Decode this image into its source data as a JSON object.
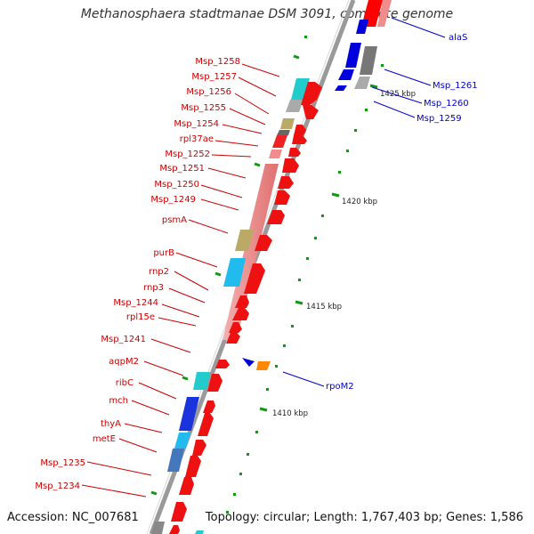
{
  "title": "Methanosphaera stadtmanae DSM 3091, complete genome",
  "footer": {
    "accession": "Accession: NC_007681",
    "summary": "Topology: circular; Length: 1,767,403 bp; Genes: 1,586"
  },
  "ticks": [
    {
      "label": "1425 kbp"
    },
    {
      "label": "1420 kbp"
    },
    {
      "label": "1415 kbp"
    },
    {
      "label": "1410 kbp"
    }
  ],
  "left_labels": [
    "Msp_1258",
    "Msp_1257",
    "Msp_1256",
    "Msp_1255",
    "Msp_1254",
    "rpl37ae",
    "Msp_1252",
    "Msp_1251",
    "Msp_1250",
    "Msp_1249",
    "psmA",
    "purB",
    "rnp2",
    "rnp3",
    "Msp_1244",
    "rpl15e",
    "Msp_1241",
    "aqpM2",
    "ribC",
    "mch",
    "thyA",
    "metE",
    "Msp_1235",
    "Msp_1234"
  ],
  "right_labels": [
    "alaS",
    "Msp_1261",
    "Msp_1260",
    "Msp_1259",
    "rpoM2"
  ],
  "colors": {
    "backbone": "#888888",
    "gene_arrow_forward": "#ff0000",
    "gene_arrow_reverse": "#0000dd",
    "cog_pink": "#f08c8c",
    "cog_cyan": "#22bbee",
    "cog_teal": "#33cccc",
    "cog_olive": "#bbaa66",
    "cog_gray": "#999999",
    "cog_blue": "#1a33dd",
    "cog_orange": "#ff8800",
    "tick_green": "#119911",
    "label_left": "#cc0000",
    "label_right": "#0000cc"
  }
}
